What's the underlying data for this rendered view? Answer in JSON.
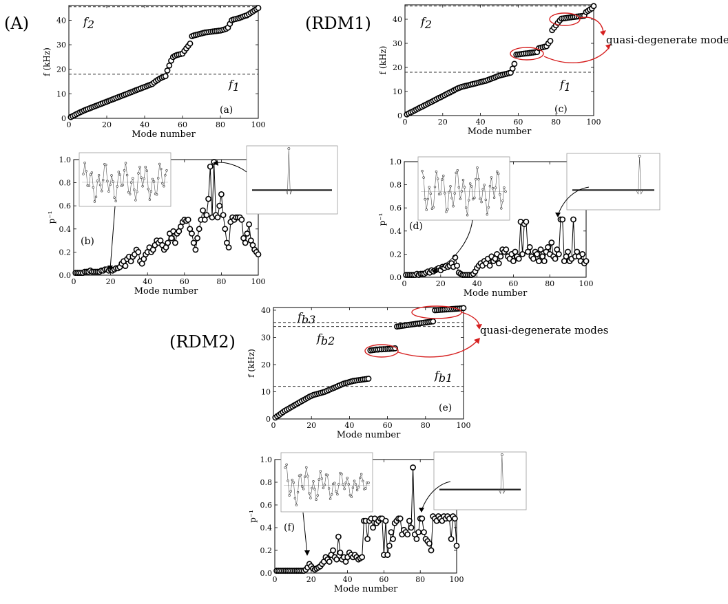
{
  "labels": {
    "A": "(A)",
    "RDM1": "(RDM1)",
    "RDM2": "(RDM2)",
    "quasi1": "quasi-degenerate modes",
    "quasi2": "quasi-degenerate modes",
    "a": "(a)",
    "b": "(b)",
    "c": "(c)",
    "d": "(d)",
    "e": "(e)",
    "f": "(f)",
    "f1": "f",
    "f1sub": "1",
    "f2": "f",
    "f2sub": "2",
    "f1c": "f",
    "f1csub": "1",
    "f2c": "f",
    "f2csub": "2",
    "fb1": "f",
    "fb1sub": "b1",
    "fb2": "f",
    "fb2sub": "b2",
    "fb3": "f",
    "fb3sub": "b3"
  },
  "colors": {
    "highlight": "#d62020"
  },
  "chart_data": [
    {
      "id": "a",
      "type": "scatter",
      "xlabel": "Mode number",
      "ylabel": "f (kHz)",
      "xlim": [
        0,
        100
      ],
      "ylim": [
        0,
        46
      ],
      "xticks": [
        0,
        20,
        40,
        60,
        80,
        100
      ],
      "yticks": [
        0,
        10,
        20,
        30,
        40
      ],
      "hlines": [
        18,
        45.5
      ],
      "x": [
        1,
        2,
        3,
        4,
        5,
        6,
        7,
        8,
        9,
        10,
        11,
        12,
        13,
        14,
        15,
        16,
        17,
        18,
        19,
        20,
        21,
        22,
        23,
        24,
        25,
        26,
        27,
        28,
        29,
        30,
        31,
        32,
        33,
        34,
        35,
        36,
        37,
        38,
        39,
        40,
        41,
        42,
        43,
        44,
        45,
        46,
        47,
        48,
        49,
        50,
        51,
        52,
        53,
        54,
        55,
        56,
        57,
        58,
        59,
        60,
        61,
        62,
        63,
        64,
        65,
        66,
        67,
        68,
        69,
        70,
        71,
        72,
        73,
        74,
        75,
        76,
        77,
        78,
        79,
        80,
        81,
        82,
        83,
        84,
        85,
        86,
        87,
        88,
        89,
        90,
        91,
        92,
        93,
        94,
        95,
        96,
        97,
        98,
        99,
        100
      ],
      "y": [
        0.5,
        0.9,
        1.3,
        1.7,
        2.1,
        2.5,
        2.8,
        3.2,
        3.5,
        3.8,
        4.1,
        4.4,
        4.7,
        5.0,
        5.3,
        5.6,
        5.9,
        6.2,
        6.5,
        6.8,
        7.1,
        7.4,
        7.7,
        8.0,
        8.3,
        8.6,
        8.9,
        9.2,
        9.5,
        9.8,
        10.1,
        10.4,
        10.7,
        11.0,
        11.3,
        11.6,
        11.9,
        12.2,
        12.5,
        12.8,
        13.1,
        13.4,
        13.7,
        14.0,
        14.6,
        15.2,
        15.7,
        16.2,
        16.6,
        16.9,
        17.2,
        19.5,
        21.5,
        23.5,
        25,
        25.5,
        25.8,
        26.0,
        26.2,
        26.4,
        27.5,
        28.5,
        29.5,
        30.5,
        33.5,
        33.8,
        34.0,
        34.2,
        34.4,
        34.6,
        34.8,
        35.0,
        35.1,
        35.2,
        35.3,
        35.4,
        35.5,
        35.6,
        35.7,
        35.8,
        36.0,
        36.2,
        36.5,
        37.0,
        38.5,
        40.0,
        40.3,
        40.5,
        40.7,
        40.9,
        41.2,
        41.5,
        41.8,
        42.0,
        42.5,
        43.0,
        43.5,
        44.0,
        44.5,
        45.0
      ]
    },
    {
      "id": "b",
      "type": "line",
      "xlabel": "Mode number",
      "ylabel": "p⁻¹",
      "xlim": [
        0,
        100
      ],
      "ylim": [
        0,
        1.0
      ],
      "xticks": [
        0,
        20,
        40,
        60,
        80,
        100
      ],
      "yticks": [
        0.0,
        0.2,
        0.4,
        0.6,
        0.8,
        1.0
      ],
      "x": [
        1,
        2,
        3,
        4,
        5,
        6,
        7,
        8,
        9,
        10,
        11,
        12,
        13,
        14,
        15,
        16,
        17,
        18,
        19,
        20,
        21,
        22,
        23,
        24,
        25,
        26,
        27,
        28,
        29,
        30,
        31,
        32,
        33,
        34,
        35,
        36,
        37,
        38,
        39,
        40,
        41,
        42,
        43,
        44,
        45,
        46,
        47,
        48,
        49,
        50,
        51,
        52,
        53,
        54,
        55,
        56,
        57,
        58,
        59,
        60,
        61,
        62,
        63,
        64,
        65,
        66,
        67,
        68,
        69,
        70,
        71,
        72,
        73,
        74,
        75,
        76,
        77,
        78,
        79,
        80,
        81,
        82,
        83,
        84,
        85,
        86,
        87,
        88,
        89,
        90,
        91,
        92,
        93,
        94,
        95,
        96,
        97,
        98,
        99,
        100
      ],
      "y": [
        0.02,
        0.02,
        0.02,
        0.02,
        0.02,
        0.03,
        0.03,
        0.03,
        0.04,
        0.03,
        0.03,
        0.03,
        0.03,
        0.03,
        0.04,
        0.04,
        0.05,
        0.05,
        0.04,
        0.05,
        0.04,
        0.05,
        0.06,
        0.06,
        0.07,
        0.1,
        0.12,
        0.08,
        0.14,
        0.16,
        0.12,
        0.16,
        0.18,
        0.22,
        0.2,
        0.12,
        0.1,
        0.14,
        0.18,
        0.2,
        0.24,
        0.2,
        0.22,
        0.26,
        0.3,
        0.28,
        0.3,
        0.26,
        0.22,
        0.24,
        0.28,
        0.36,
        0.32,
        0.38,
        0.28,
        0.36,
        0.38,
        0.42,
        0.46,
        0.48,
        0.47,
        0.48,
        0.4,
        0.36,
        0.28,
        0.22,
        0.32,
        0.4,
        0.48,
        0.56,
        0.48,
        0.52,
        0.66,
        0.94,
        0.5,
        0.98,
        0.52,
        0.5,
        0.6,
        0.7,
        0.52,
        0.4,
        0.28,
        0.24,
        0.46,
        0.5,
        0.48,
        0.5,
        0.5,
        0.5,
        0.48,
        0.32,
        0.28,
        0.36,
        0.44,
        0.3,
        0.26,
        0.22,
        0.2,
        0.18
      ]
    },
    {
      "id": "c",
      "type": "scatter",
      "xlabel": "Mode number",
      "ylabel": "f (kHz)",
      "xlim": [
        0,
        100
      ],
      "ylim": [
        0,
        46
      ],
      "xticks": [
        0,
        20,
        40,
        60,
        80,
        100
      ],
      "yticks": [
        0,
        10,
        20,
        30,
        40
      ],
      "hlines": [
        18,
        45.5
      ],
      "x": [
        1,
        2,
        3,
        4,
        5,
        6,
        7,
        8,
        9,
        10,
        11,
        12,
        13,
        14,
        15,
        16,
        17,
        18,
        19,
        20,
        21,
        22,
        23,
        24,
        25,
        26,
        27,
        28,
        29,
        30,
        31,
        32,
        33,
        34,
        35,
        36,
        37,
        38,
        39,
        40,
        41,
        42,
        43,
        44,
        45,
        46,
        47,
        48,
        49,
        50,
        51,
        52,
        53,
        54,
        55,
        56,
        57,
        58,
        59,
        60,
        61,
        62,
        63,
        64,
        65,
        66,
        67,
        68,
        69,
        70,
        71,
        72,
        73,
        74,
        75,
        76,
        77,
        78,
        79,
        80,
        81,
        82,
        83,
        84,
        85,
        86,
        87,
        88,
        89,
        90,
        91,
        92,
        93,
        94,
        95,
        96,
        97,
        98,
        99,
        100
      ],
      "y": [
        0.5,
        0.9,
        1.3,
        1.7,
        2.1,
        2.5,
        2.9,
        3.3,
        3.7,
        4.1,
        4.5,
        4.9,
        5.3,
        5.7,
        6.1,
        6.5,
        6.9,
        7.3,
        7.7,
        8.1,
        8.5,
        8.9,
        9.3,
        9.7,
        10.1,
        10.5,
        10.9,
        11.3,
        11.6,
        11.9,
        12.1,
        12.3,
        12.5,
        12.7,
        12.9,
        13.1,
        13.3,
        13.5,
        13.7,
        13.9,
        14.1,
        14.3,
        14.5,
        14.8,
        15.1,
        15.4,
        15.7,
        16.0,
        16.3,
        16.6,
        16.8,
        17.0,
        17.2,
        17.4,
        17.6,
        17.8,
        19.5,
        21.5,
        25.3,
        25.4,
        25.5,
        25.6,
        25.7,
        25.8,
        25.9,
        26.0,
        26.1,
        26.2,
        26.3,
        26.4,
        28.0,
        28.2,
        28.4,
        28.6,
        28.8,
        30.0,
        31.0,
        35.5,
        36.5,
        37.5,
        38.5,
        39.5,
        40.3,
        40.4,
        40.5,
        40.6,
        40.7,
        40.8,
        40.9,
        41.0,
        41.1,
        41.2,
        41.3,
        41.4,
        41.5,
        43.0,
        43.5,
        44.0,
        44.5,
        45.5
      ]
    },
    {
      "id": "d",
      "type": "line",
      "xlabel": "Mode number",
      "ylabel": "p⁻¹",
      "xlim": [
        0,
        100
      ],
      "ylim": [
        0,
        1.0
      ],
      "xticks": [
        0,
        20,
        40,
        60,
        80,
        100
      ],
      "yticks": [
        0.0,
        0.2,
        0.4,
        0.6,
        0.8,
        1.0
      ],
      "x": [
        1,
        2,
        3,
        4,
        5,
        6,
        7,
        8,
        9,
        10,
        11,
        12,
        13,
        14,
        15,
        16,
        17,
        18,
        19,
        20,
        21,
        22,
        23,
        24,
        25,
        26,
        27,
        28,
        29,
        30,
        31,
        32,
        33,
        34,
        35,
        36,
        37,
        38,
        39,
        40,
        41,
        42,
        43,
        44,
        45,
        46,
        47,
        48,
        49,
        50,
        51,
        52,
        53,
        54,
        55,
        56,
        57,
        58,
        59,
        60,
        61,
        62,
        63,
        64,
        65,
        66,
        67,
        68,
        69,
        70,
        71,
        72,
        73,
        74,
        75,
        76,
        77,
        78,
        79,
        80,
        81,
        82,
        83,
        84,
        85,
        86,
        87,
        88,
        89,
        90,
        91,
        92,
        93,
        94,
        95,
        96,
        97,
        98,
        99,
        100
      ],
      "y": [
        0.02,
        0.02,
        0.02,
        0.02,
        0.02,
        0.02,
        0.03,
        0.02,
        0.03,
        0.03,
        0.03,
        0.04,
        0.05,
        0.04,
        0.06,
        0.05,
        0.06,
        0.07,
        0.08,
        0.06,
        0.09,
        0.08,
        0.1,
        0.09,
        0.1,
        0.12,
        0.09,
        0.17,
        0.1,
        0.04,
        0.03,
        0.02,
        0.02,
        0.02,
        0.02,
        0.02,
        0.02,
        0.03,
        0.05,
        0.08,
        0.1,
        0.12,
        0.1,
        0.14,
        0.12,
        0.16,
        0.1,
        0.18,
        0.14,
        0.16,
        0.2,
        0.12,
        0.18,
        0.24,
        0.22,
        0.24,
        0.18,
        0.16,
        0.2,
        0.14,
        0.22,
        0.18,
        0.16,
        0.48,
        0.2,
        0.46,
        0.48,
        0.22,
        0.26,
        0.18,
        0.16,
        0.22,
        0.2,
        0.14,
        0.24,
        0.18,
        0.14,
        0.22,
        0.26,
        0.2,
        0.3,
        0.18,
        0.16,
        0.24,
        0.2,
        0.5,
        0.5,
        0.14,
        0.18,
        0.22,
        0.14,
        0.16,
        0.5,
        0.18,
        0.22,
        0.18,
        0.14,
        0.2,
        0.12,
        0.14
      ]
    },
    {
      "id": "e",
      "type": "scatter",
      "xlabel": "Mode number",
      "ylabel": "f (kHz)",
      "xlim": [
        0,
        100
      ],
      "ylim": [
        0,
        41
      ],
      "xticks": [
        0,
        20,
        40,
        60,
        80,
        100
      ],
      "yticks": [
        0,
        10,
        20,
        30,
        40
      ],
      "hlines": [
        12,
        34,
        35.5
      ],
      "x": [
        1,
        2,
        3,
        4,
        5,
        6,
        7,
        8,
        9,
        10,
        11,
        12,
        13,
        14,
        15,
        16,
        17,
        18,
        19,
        20,
        21,
        22,
        23,
        24,
        25,
        26,
        27,
        28,
        29,
        30,
        31,
        32,
        33,
        34,
        35,
        36,
        37,
        38,
        39,
        40,
        41,
        42,
        43,
        44,
        45,
        46,
        47,
        48,
        49,
        50,
        51,
        52,
        53,
        54,
        55,
        56,
        57,
        58,
        59,
        60,
        61,
        62,
        63,
        64,
        65,
        66,
        67,
        68,
        69,
        70,
        71,
        72,
        73,
        74,
        75,
        76,
        77,
        78,
        79,
        80,
        81,
        82,
        83,
        84,
        85,
        86,
        87,
        88,
        89,
        90,
        91,
        92,
        93,
        94,
        95,
        96,
        97,
        98,
        99,
        100
      ],
      "y": [
        0.5,
        1.0,
        1.5,
        2.0,
        2.5,
        3.0,
        3.4,
        3.8,
        4.2,
        4.6,
        5.0,
        5.4,
        5.8,
        6.2,
        6.6,
        7.0,
        7.4,
        7.8,
        8.2,
        8.5,
        8.8,
        9.0,
        9.2,
        9.4,
        9.6,
        9.8,
        10.0,
        10.3,
        10.6,
        10.9,
        11.2,
        11.5,
        11.8,
        12.1,
        12.4,
        12.7,
        13.0,
        13.2,
        13.4,
        13.6,
        13.8,
        14.0,
        14.1,
        14.2,
        14.3,
        14.4,
        14.5,
        14.6,
        14.7,
        14.8,
        25.2,
        25.3,
        25.4,
        25.5,
        25.5,
        25.6,
        25.6,
        25.7,
        25.7,
        25.8,
        25.8,
        25.9,
        25.9,
        26.0,
        34.0,
        34.1,
        34.2,
        34.3,
        34.4,
        34.5,
        34.6,
        34.7,
        34.8,
        34.9,
        35.0,
        35.1,
        35.2,
        35.3,
        35.4,
        35.5,
        35.6,
        35.7,
        35.8,
        35.9,
        40.0,
        40.05,
        40.1,
        40.15,
        40.2,
        40.25,
        40.3,
        40.35,
        40.4,
        40.45,
        40.5,
        40.55,
        40.6,
        40.65,
        40.7,
        40.8
      ]
    },
    {
      "id": "f",
      "type": "line",
      "xlabel": "Mode number",
      "ylabel": "p⁻¹",
      "xlim": [
        0,
        100
      ],
      "ylim": [
        0,
        1.0
      ],
      "xticks": [
        0,
        20,
        40,
        60,
        80,
        100
      ],
      "yticks": [
        0.0,
        0.2,
        0.4,
        0.6,
        0.8,
        1.0
      ],
      "x": [
        1,
        2,
        3,
        4,
        5,
        6,
        7,
        8,
        9,
        10,
        11,
        12,
        13,
        14,
        15,
        16,
        17,
        18,
        19,
        20,
        21,
        22,
        23,
        24,
        25,
        26,
        27,
        28,
        29,
        30,
        31,
        32,
        33,
        34,
        35,
        36,
        37,
        38,
        39,
        40,
        41,
        42,
        43,
        44,
        45,
        46,
        47,
        48,
        49,
        50,
        51,
        52,
        53,
        54,
        55,
        56,
        57,
        58,
        59,
        60,
        61,
        62,
        63,
        64,
        65,
        66,
        67,
        68,
        69,
        70,
        71,
        72,
        73,
        74,
        75,
        76,
        77,
        78,
        79,
        80,
        81,
        82,
        83,
        84,
        85,
        86,
        87,
        88,
        89,
        90,
        91,
        92,
        93,
        94,
        95,
        96,
        97,
        98,
        99,
        100
      ],
      "y": [
        0.02,
        0.02,
        0.02,
        0.02,
        0.02,
        0.02,
        0.02,
        0.02,
        0.02,
        0.02,
        0.02,
        0.02,
        0.02,
        0.02,
        0.02,
        0.02,
        0.03,
        0.05,
        0.08,
        0.06,
        0.04,
        0.03,
        0.04,
        0.05,
        0.06,
        0.08,
        0.1,
        0.14,
        0.12,
        0.1,
        0.16,
        0.2,
        0.14,
        0.12,
        0.32,
        0.18,
        0.12,
        0.14,
        0.1,
        0.14,
        0.18,
        0.16,
        0.14,
        0.16,
        0.14,
        0.12,
        0.13,
        0.14,
        0.46,
        0.46,
        0.3,
        0.46,
        0.48,
        0.4,
        0.48,
        0.44,
        0.46,
        0.48,
        0.48,
        0.16,
        0.46,
        0.16,
        0.24,
        0.36,
        0.3,
        0.44,
        0.46,
        0.48,
        0.48,
        0.34,
        0.38,
        0.36,
        0.34,
        0.46,
        0.4,
        0.93,
        0.34,
        0.3,
        0.36,
        0.48,
        0.48,
        0.36,
        0.3,
        0.28,
        0.26,
        0.2,
        0.5,
        0.48,
        0.46,
        0.5,
        0.48,
        0.46,
        0.5,
        0.48,
        0.5,
        0.48,
        0.3,
        0.5,
        0.48,
        0.24
      ]
    }
  ]
}
